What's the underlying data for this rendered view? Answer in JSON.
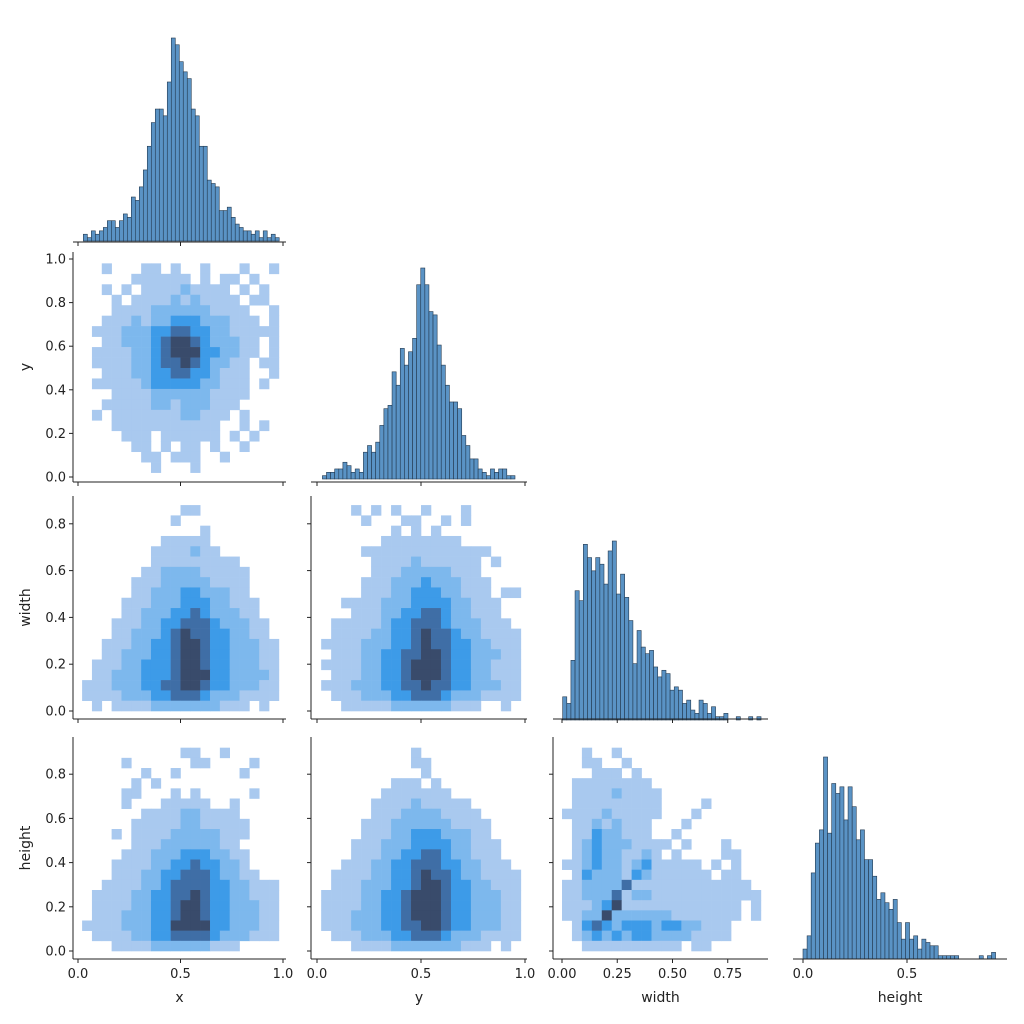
{
  "chart_data": {
    "type": "pairplot",
    "corner": true,
    "variables": [
      "x",
      "y",
      "width",
      "height"
    ],
    "colors": {
      "hist_fill": "#5a93c5",
      "hist_edge": "#23394f",
      "heat_levels": [
        "#ffffff",
        "#a9c9ef",
        "#7db8ed",
        "#3d9be8",
        "#3f6ea6",
        "#394b6b"
      ]
    },
    "axes": {
      "x": {
        "label": "x",
        "xticks": [
          0,
          0.5,
          1.0
        ],
        "xtick_labels": [
          "0.0",
          "0.5",
          "1.0"
        ]
      },
      "y": {
        "label": "y",
        "xticks": [
          0,
          0.5,
          1.0
        ],
        "xtick_labels": [
          "0.0",
          "0.5",
          "1.0"
        ],
        "yticks": [
          0,
          0.2,
          0.4,
          0.6,
          0.8,
          1.0
        ],
        "ytick_labels": [
          "0.0",
          "0.2",
          "0.4",
          "0.6",
          "0.8",
          "1.0"
        ]
      },
      "width": {
        "label": "width",
        "xticks": [
          0,
          0.25,
          0.5,
          0.75
        ],
        "xtick_labels": [
          "0.00",
          "0.25",
          "0.50",
          "0.75"
        ],
        "yticks": [
          0,
          0.2,
          0.4,
          0.6,
          0.8
        ],
        "ytick_labels": [
          "0.0",
          "0.2",
          "0.4",
          "0.6",
          "0.8"
        ]
      },
      "height": {
        "label": "height",
        "xticks": [
          0,
          0.5
        ],
        "xtick_labels": [
          "0.0",
          "0.5"
        ],
        "yticks": [
          0,
          0.2,
          0.4,
          0.6,
          0.8
        ],
        "ytick_labels": [
          "0.0",
          "0.2",
          "0.4",
          "0.6",
          "0.8"
        ]
      }
    },
    "diag": [
      {
        "variable": "x",
        "type": "histogram",
        "bin_start": 0.026,
        "bin_width": 0.0195,
        "counts": [
          2,
          1,
          3,
          2,
          3,
          4,
          6,
          6,
          4,
          6,
          8,
          7,
          13,
          12,
          16,
          21,
          28,
          35,
          39,
          39,
          37,
          47,
          60,
          58,
          53,
          50,
          48,
          39,
          37,
          28,
          28,
          18,
          17,
          16,
          9,
          9,
          10,
          7,
          5,
          4,
          3,
          3,
          2,
          3,
          1,
          3,
          1,
          2,
          1
        ]
      },
      {
        "variable": "y",
        "type": "histogram",
        "bin_start": 0.026,
        "bin_width": 0.0197,
        "counts": [
          1,
          2,
          2,
          3,
          3,
          5,
          4,
          2,
          3,
          2,
          8,
          10,
          8,
          11,
          16,
          21,
          22,
          32,
          28,
          39,
          34,
          38,
          42,
          58,
          63,
          58,
          50,
          49,
          40,
          34,
          28,
          23,
          23,
          21,
          13,
          10,
          6,
          6,
          3,
          2,
          1,
          3,
          2,
          3,
          3,
          1,
          1
        ]
      },
      {
        "variable": "width",
        "type": "histogram",
        "bin_start": 0.003,
        "bin_width": 0.0187,
        "counts": [
          7,
          5,
          18,
          39,
          36,
          53,
          49,
          45,
          49,
          47,
          41,
          51,
          54,
          38,
          44,
          37,
          30,
          17,
          27,
          22,
          20,
          21,
          16,
          13,
          15,
          14,
          9,
          10,
          9,
          5,
          6,
          3,
          2,
          6,
          5,
          2,
          4,
          1,
          1,
          2,
          0,
          0,
          1,
          0,
          0,
          1,
          0,
          1
        ]
      },
      {
        "variable": "height",
        "type": "histogram",
        "bin_start": 0.0,
        "bin_width": 0.0197,
        "counts": [
          3,
          7,
          26,
          35,
          39,
          61,
          38,
          53,
          50,
          52,
          42,
          52,
          46,
          36,
          39,
          30,
          30,
          25,
          18,
          20,
          17,
          15,
          18,
          11,
          6,
          11,
          6,
          7,
          3,
          6,
          5,
          4,
          4,
          1,
          1,
          1,
          1,
          1,
          0,
          0,
          0,
          0,
          0,
          1,
          0,
          1,
          2
        ]
      }
    ],
    "offdiag": [
      {
        "x_var": "x",
        "y_var": "y",
        "type": "heatmap",
        "x_range": [
          0.02,
          0.98
        ],
        "y_range": [
          0.02,
          0.98
        ],
        "grid": [
          "00100011010010001001",
          "00000111111010110100",
          "00101011112111101010",
          "00010111121211110110",
          "00011112222221111001",
          "00111212233322211101",
          "01112223344332211111",
          "00112223455432221101",
          "01111223455533221101",
          "01111223445432211011",
          "00111223344332111001",
          "01111123333322111010",
          "00011112222221111000",
          "00111112212221110000",
          "01011111112211101000",
          "00011111111111001010",
          "00001110111111010100",
          "00000110101101001000",
          "00000011011100100000",
          "00000001000100000000"
        ]
      },
      {
        "x_var": "x",
        "y_var": "width",
        "type": "heatmap",
        "x_range": [
          0.02,
          0.98
        ],
        "y_range": [
          0.0,
          0.88
        ],
        "grid": [
          "00000000001100000000",
          "00000000010000000000",
          "00000000000010000000",
          "00000000111110000000",
          "00000001111211000000",
          "00000001111111110000",
          "00000011222211111000",
          "00000111222221111000",
          "00000112223322211000",
          "00001112223332211100",
          "00001122233432221100",
          "00011122334443222110",
          "00011222345443322110",
          "00111223345543322211",
          "00112223345543322211",
          "01112233345543322211",
          "01122233345553322221",
          "11122233445543322211",
          "11112223344432221111",
          "01011112222222111010"
        ]
      },
      {
        "x_var": "y",
        "y_var": "width",
        "type": "heatmap",
        "x_range": [
          0.02,
          0.98
        ],
        "y_range": [
          0.0,
          0.88
        ],
        "grid": [
          "00010101001000100000",
          "00001000110010100000",
          "00000001010100000000",
          "00000011111111000000",
          "00001111111111111000",
          "00000111121111110100",
          "00000111222221110000",
          "00001112223222111000",
          "00001112233322111011",
          "00111122233332211100",
          "00011122334432211100",
          "01111123344432221110",
          "01111223345443221111",
          "11112223345443322111",
          "01112233445543322211",
          "11112233455543322111",
          "01112233455543322111",
          "11122233445443322211",
          "01112223344432221111",
          "00111112222221110010"
        ]
      },
      {
        "x_var": "x",
        "y_var": "height",
        "type": "heatmap",
        "x_range": [
          0.02,
          0.98
        ],
        "y_range": [
          0.0,
          0.92
        ],
        "grid": [
          "00000000001100100000",
          "00001000000110000100",
          "00000010010000001000",
          "00000101000000000000",
          "00001100010100000100",
          "00001000111110010000",
          "00000011112211110000",
          "00000111112211111000",
          "00010111122222111000",
          "00000111222222110000",
          "00001112223332211000",
          "00011112233433221000",
          "00011122334443221100",
          "00111122344443322111",
          "01111223344543322111",
          "01111223345543322211",
          "01112223345543322211",
          "11112223355553322211",
          "01111223344443222111",
          "00011112222221110000"
        ]
      },
      {
        "x_var": "y",
        "y_var": "height",
        "type": "heatmap",
        "x_range": [
          0.02,
          0.98
        ],
        "y_range": [
          0.0,
          0.92
        ],
        "grid": [
          "00000000010000000000",
          "00000000011000000000",
          "00000000001000000000",
          "00000001110100000000",
          "00000011111110000000",
          "00000111121111100000",
          "00000111222211110000",
          "00001112222221111000",
          "00001112233322211000",
          "00011122233332211100",
          "00011122334432211100",
          "00111223344433221110",
          "01111223345443221111",
          "01112223345543322111",
          "11112233455543322211",
          "11112233455543322211",
          "11122233455543322211",
          "11122233445543322211",
          "01112223344432221111",
          "00011112222222111010"
        ]
      },
      {
        "x_var": "width",
        "y_var": "height",
        "type": "heatmap",
        "x_range": [
          0.0,
          0.9
        ],
        "y_range": [
          0.0,
          0.92
        ],
        "grid": [
          "00100100000000000000",
          "00110010000000000000",
          "00011101000000000000",
          "01111111100000000000",
          "01111211110000000000",
          "01111111110000100000",
          "11112111110001000000",
          "01121211100010000000",
          "01132211100100000000",
          "01232221111010001000",
          "01232211210100001100",
          "11232212311111010100",
          "01322213211111101100",
          "11222241111111111110",
          "11222412211111111111",
          "11123511111111111101",
          "11225222222111111101",
          "01343233323322111000",
          "01232323322221111000",
          "00111111111101100000"
        ]
      }
    ]
  }
}
